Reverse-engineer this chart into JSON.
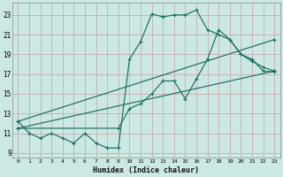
{
  "xlabel": "Humidex (Indice chaleur)",
  "bg_color": "#cce8e4",
  "grid_color": "#c8a0a8",
  "line_color": "#1a6e60",
  "xlim": [
    -0.5,
    23.5
  ],
  "ylim": [
    8.5,
    24.2
  ],
  "xticks": [
    0,
    1,
    2,
    3,
    4,
    5,
    6,
    7,
    8,
    9,
    10,
    11,
    12,
    13,
    14,
    15,
    16,
    17,
    18,
    19,
    20,
    21,
    22,
    23
  ],
  "yticks": [
    9,
    11,
    13,
    15,
    17,
    19,
    21,
    23
  ],
  "line1_x": [
    0,
    1,
    2,
    3,
    4,
    5,
    6,
    7,
    8,
    9,
    10,
    11,
    12,
    13,
    14,
    15,
    16,
    17,
    18,
    19,
    20,
    21,
    22,
    23
  ],
  "line1_y": [
    12.2,
    11.0,
    10.5,
    11.0,
    10.5,
    10.0,
    11.0,
    10.0,
    9.5,
    9.5,
    18.5,
    20.3,
    23.1,
    22.8,
    23.0,
    23.0,
    23.5,
    21.5,
    21.0,
    20.5,
    19.0,
    18.5,
    17.3,
    17.2
  ],
  "line2_x": [
    0,
    23
  ],
  "line2_y": [
    11.5,
    17.3
  ],
  "line3_x": [
    0,
    23
  ],
  "line3_y": [
    12.2,
    20.5
  ],
  "line4_x": [
    0,
    9,
    10,
    11,
    12,
    13,
    14,
    15,
    16,
    17,
    18,
    19,
    20,
    21,
    22,
    23
  ],
  "line4_y": [
    11.5,
    11.5,
    13.5,
    14.0,
    15.0,
    16.3,
    16.3,
    14.5,
    16.5,
    18.5,
    21.5,
    20.5,
    19.0,
    18.3,
    17.7,
    17.3
  ]
}
